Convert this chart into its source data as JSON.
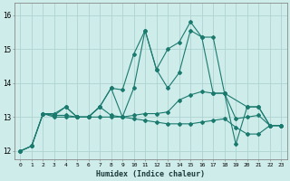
{
  "xlabel": "Humidex (Indice chaleur)",
  "background_color": "#ceecea",
  "grid_color": "#aed4d0",
  "line_color": "#1a7a6e",
  "xlim": [
    -0.5,
    23.5
  ],
  "ylim": [
    11.75,
    16.35
  ],
  "yticks": [
    12,
    13,
    14,
    15,
    16
  ],
  "xticks": [
    0,
    1,
    2,
    3,
    4,
    5,
    6,
    7,
    8,
    9,
    10,
    11,
    12,
    13,
    14,
    15,
    16,
    17,
    18,
    19,
    20,
    21,
    22,
    23
  ],
  "line1_x": [
    0,
    1,
    2,
    3,
    4,
    5,
    6,
    7,
    8,
    9,
    10,
    11,
    12,
    13,
    14,
    15,
    16,
    17,
    18,
    20,
    21,
    22,
    23
  ],
  "line1_y": [
    12.0,
    12.15,
    13.1,
    13.05,
    13.3,
    13.0,
    13.0,
    13.3,
    13.85,
    13.8,
    14.85,
    15.55,
    14.4,
    15.0,
    15.2,
    15.8,
    15.35,
    13.7,
    13.7,
    13.3,
    13.3,
    12.75,
    12.75
  ],
  "line2_x": [
    0,
    1,
    2,
    3,
    4,
    5,
    6,
    7,
    8,
    9,
    10,
    11,
    12,
    13,
    14,
    15,
    16,
    17,
    18,
    19,
    20,
    21,
    22,
    23
  ],
  "line2_y": [
    12.0,
    12.15,
    13.1,
    13.05,
    13.05,
    13.0,
    13.0,
    13.3,
    13.05,
    13.0,
    13.05,
    13.1,
    13.1,
    13.15,
    13.5,
    13.65,
    13.75,
    13.7,
    13.7,
    12.95,
    13.0,
    13.05,
    12.75,
    12.75
  ],
  "line3_x": [
    0,
    1,
    2,
    3,
    4,
    5,
    6,
    7,
    8,
    9,
    10,
    11,
    12,
    13,
    14,
    15,
    16,
    17,
    18,
    19,
    20,
    21,
    22,
    23
  ],
  "line3_y": [
    12.0,
    12.15,
    13.1,
    13.0,
    13.0,
    13.0,
    13.0,
    13.0,
    13.0,
    13.0,
    12.95,
    12.9,
    12.85,
    12.8,
    12.8,
    12.8,
    12.85,
    12.9,
    12.95,
    12.7,
    12.5,
    12.5,
    12.75,
    12.75
  ],
  "line4_x": [
    2,
    3,
    4,
    5,
    6,
    7,
    8,
    9,
    10,
    11,
    12,
    13,
    14,
    15,
    16,
    17,
    18,
    19,
    20,
    21,
    22,
    23
  ],
  "line4_y": [
    13.1,
    13.1,
    13.3,
    13.0,
    13.0,
    13.3,
    13.85,
    13.0,
    13.85,
    15.55,
    14.4,
    13.85,
    14.3,
    15.55,
    15.35,
    15.35,
    13.7,
    12.2,
    13.3,
    13.3,
    12.75,
    12.75
  ]
}
